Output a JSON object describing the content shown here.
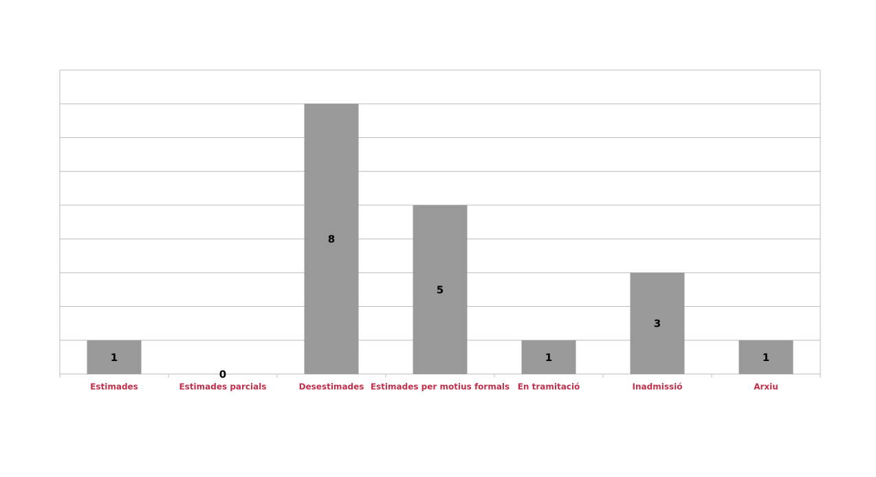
{
  "chart_data": {
    "type": "bar",
    "categories": [
      "Estimades",
      "Estimades parcials",
      "Desestimades",
      "Estimades per motius formals",
      "En tramitació",
      "Inadmissió",
      "Arxiu"
    ],
    "values": [
      1,
      0,
      8,
      5,
      1,
      3,
      1
    ],
    "color": "#999999",
    "ylim": [
      0,
      9
    ],
    "yticks": [
      0,
      1,
      2,
      3,
      4,
      5,
      6,
      7,
      8,
      9
    ],
    "grid": true,
    "ytick_labels": false
  }
}
